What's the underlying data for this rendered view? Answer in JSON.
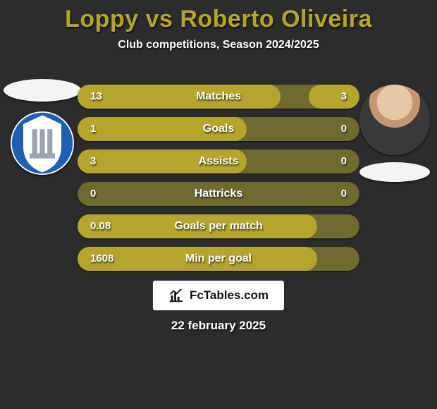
{
  "title_color": "#b5a52e",
  "title": "Loppy vs Roberto Oliveira",
  "subtitle": "Club competitions, Season 2024/2025",
  "date": "22 february 2025",
  "brand": "FcTables.com",
  "colors": {
    "bar_bg": "#6f6a2f",
    "bar_fill": "#b5a52e",
    "background": "#2c2c2c",
    "text": "#ffffff",
    "brand_bg": "#ffffff",
    "brand_text": "#111111"
  },
  "club_badge": {
    "ring_color": "#1e5fb4",
    "inner_color": "#ffffff",
    "column_color": "#9aa5b1"
  },
  "stats": [
    {
      "label": "Matches",
      "left_text": "13",
      "right_text": "3",
      "left_pct": 72,
      "right_pct": 18
    },
    {
      "label": "Goals",
      "left_text": "1",
      "right_text": "0",
      "left_pct": 60,
      "right_pct": 0
    },
    {
      "label": "Assists",
      "left_text": "3",
      "right_text": "0",
      "left_pct": 60,
      "right_pct": 0
    },
    {
      "label": "Hattricks",
      "left_text": "0",
      "right_text": "0",
      "left_pct": 0,
      "right_pct": 0
    },
    {
      "label": "Goals per match",
      "left_text": "0.08",
      "right_text": "",
      "left_pct": 85,
      "right_pct": 0
    },
    {
      "label": "Min per goal",
      "left_text": "1608",
      "right_text": "",
      "left_pct": 85,
      "right_pct": 0
    }
  ]
}
